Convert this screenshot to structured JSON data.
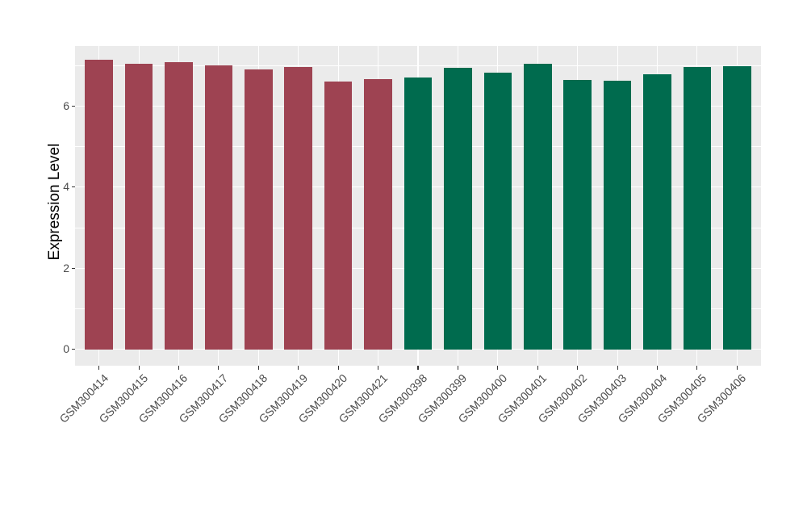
{
  "chart_data": {
    "type": "bar",
    "title": "",
    "ylabel": "Expression Level",
    "categories": [
      "GSM300414",
      "GSM300415",
      "GSM300416",
      "GSM300417",
      "GSM300418",
      "GSM300419",
      "GSM300420",
      "GSM300421",
      "GSM300398",
      "GSM300399",
      "GSM300400",
      "GSM300401",
      "GSM300402",
      "GSM300403",
      "GSM300404",
      "GSM300405",
      "GSM300406"
    ],
    "values": [
      7.15,
      7.05,
      7.09,
      7.01,
      6.9,
      6.96,
      6.6,
      6.66,
      6.71,
      6.95,
      6.83,
      7.04,
      6.64,
      6.62,
      6.78,
      6.96,
      6.98
    ],
    "bar_colors": [
      "#9E4352",
      "#9E4352",
      "#9E4352",
      "#9E4352",
      "#9E4352",
      "#9E4352",
      "#9E4352",
      "#9E4352",
      "#006B4E",
      "#006B4E",
      "#006B4E",
      "#006B4E",
      "#006B4E",
      "#006B4E",
      "#006B4E",
      "#006B4E",
      "#006B4E"
    ],
    "yticks": [
      0,
      2,
      4,
      6
    ],
    "yticks_minor": [
      1,
      3,
      5,
      7
    ],
    "ylim": [
      -0.4,
      7.48
    ],
    "grid": true,
    "legend": "none",
    "colors": {
      "group_left": "#9E4352",
      "group_right": "#006B4E",
      "panel_background": "#EBEBEB",
      "gridline": "#FFFFFF",
      "tick_mark": "#333333",
      "tick_label": "#4D4D4D",
      "axis_title": "#000000"
    }
  }
}
